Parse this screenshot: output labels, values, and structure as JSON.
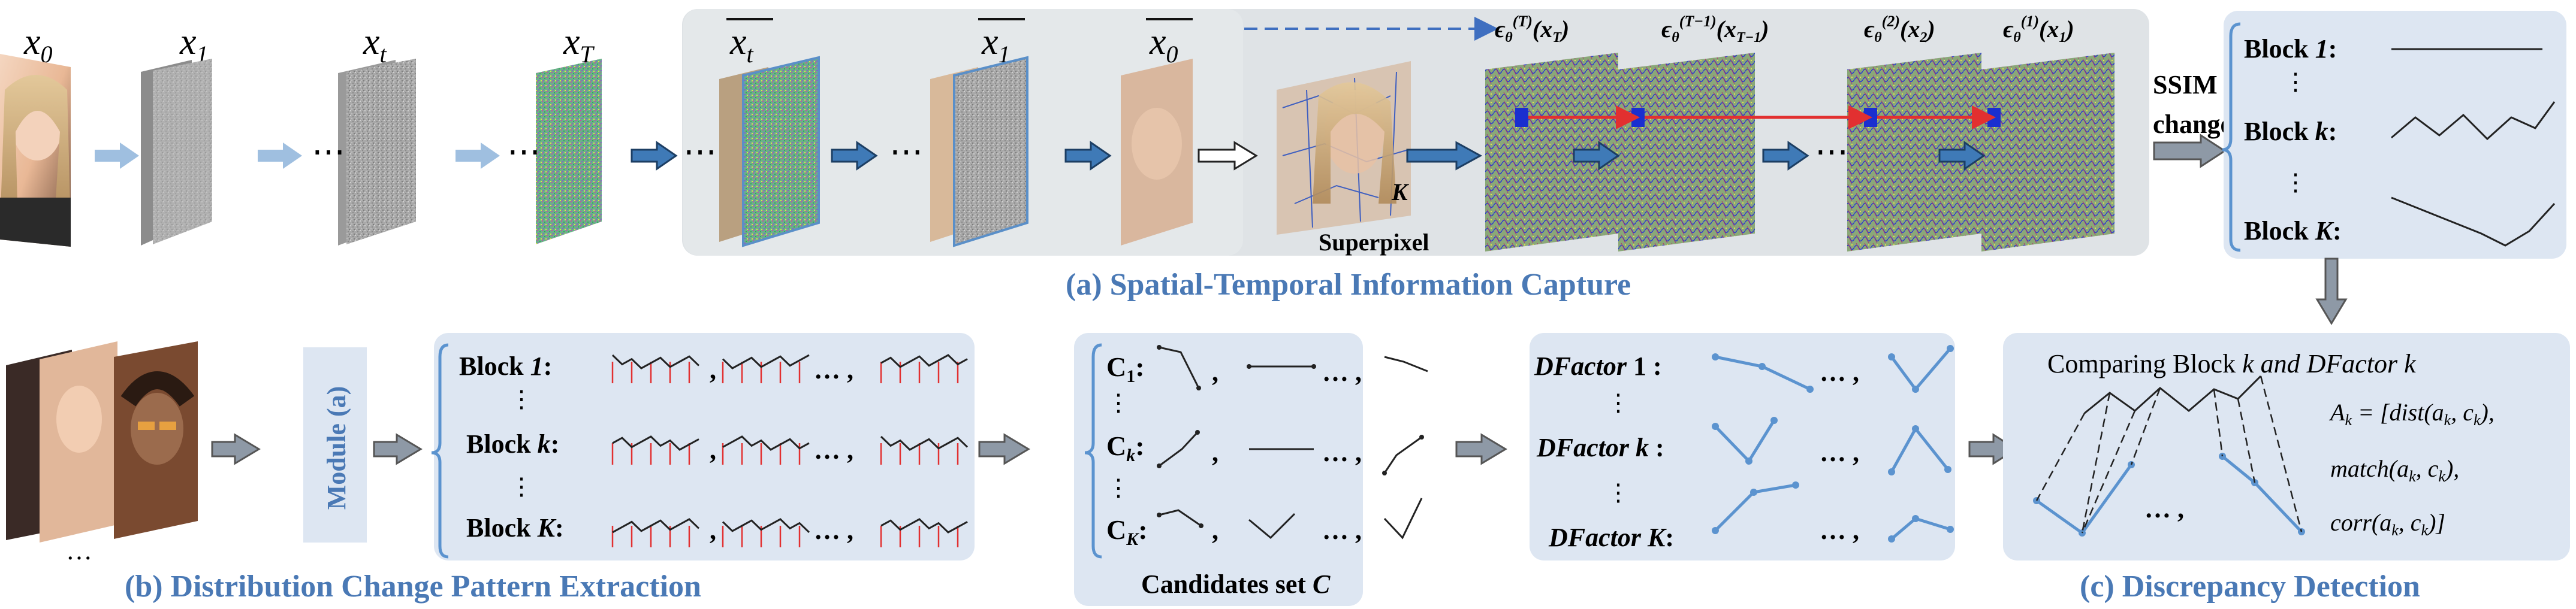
{
  "top": {
    "x_labels": {
      "x0": "x",
      "x0_sub": "0",
      "x1": "x",
      "x1_sub": "1",
      "xt": "x",
      "xt_sub": "t",
      "xT": "x",
      "xT_sub": "T"
    },
    "xbar_labels": {
      "t": "x",
      "t_sub": "t",
      "one": "x",
      "one_sub": "1",
      "zero": "x",
      "zero_sub": "0"
    },
    "ellipsis": "⋯",
    "superpixel_k": "K",
    "superpixel_label": "Superpixel",
    "eps": [
      {
        "base": "ϵ",
        "sub": "θ",
        "sup": "(T)",
        "arg": "(x",
        "arg_sub": "T",
        "close": ")"
      },
      {
        "base": "ϵ",
        "sub": "θ",
        "sup": "(T−1)",
        "arg": "(x",
        "arg_sub": "T−1",
        "close": ")"
      },
      {
        "base": "ϵ",
        "sub": "θ",
        "sup": "(2)",
        "arg": "(x",
        "arg_sub": "2",
        "close": ")"
      },
      {
        "base": "ϵ",
        "sub": "θ",
        "sup": "(1)",
        "arg": "(x",
        "arg_sub": "1",
        "close": ")"
      }
    ],
    "ssim_line1": "SSIM",
    "ssim_line2": "change",
    "blocks": [
      {
        "label": "Block 1:",
        "prefix": "Block ",
        "var": "1",
        "suffix": ":"
      },
      {
        "label": "Block k:",
        "prefix": "Block ",
        "var": "k",
        "suffix": ":"
      },
      {
        "label": "Block K:",
        "prefix": "Block ",
        "var": "K",
        "suffix": ":"
      }
    ],
    "caption_a": "(a) Spatial-Temporal Information Capture"
  },
  "bottom": {
    "module_label": "Module (a)",
    "faces_ellipsis": "…",
    "blocks_b": [
      {
        "prefix": "Block ",
        "var": "1",
        "suffix": ":"
      },
      {
        "prefix": "Block ",
        "var": "k",
        "suffix": ":"
      },
      {
        "prefix": "Block ",
        "var": "K",
        "suffix": ":"
      }
    ],
    "caption_b": "(b) Distribution Change Pattern Extraction",
    "candidates": [
      {
        "base": "C",
        "sub": "1",
        "suffix": ":"
      },
      {
        "base": "C",
        "sub": "k",
        "suffix": ":"
      },
      {
        "base": "C",
        "sub": "K",
        "suffix": ":"
      }
    ],
    "candidates_caption_prefix": "Candidates set ",
    "candidates_caption_var": "C",
    "dfactors": [
      {
        "prefix": "DFactor ",
        "var": "1",
        "suffix": " :"
      },
      {
        "prefix": "DFactor ",
        "var": "k",
        "suffix": " :"
      },
      {
        "prefix": "DFactor ",
        "var": "K",
        "suffix": ":"
      }
    ],
    "sep_comma": ",",
    "sep_dots": "… ,",
    "compare_title_prefix": "Comparing Block ",
    "compare_title_k1": "k",
    "compare_title_mid": " and ",
    "compare_title_df": "DFactor k",
    "formula": {
      "line1": "A",
      "line1_sub": "k",
      "line1_rest": " = [dist(a",
      "line1_sub2": "k",
      "line1_mid": ", c",
      "line1_sub3": "k",
      "line1_end": "),",
      "line2": "match(a",
      "line2_sub": "k",
      "line2_mid": ", c",
      "line2_sub2": "k",
      "line2_end": "),",
      "line3": "corr(a",
      "line3_sub": "k",
      "line3_mid": ", c",
      "line3_sub2": "k",
      "line3_end": ")]"
    },
    "caption_c": "(c) Discrepancy Detection"
  },
  "colors": {
    "panel_bg": "#dde6f2",
    "panel_a_bg": "#dfe3e6",
    "caption_blue": "#4a79b5",
    "arrow_blue": "#3f7ab7",
    "arrow_light": "#9fbfe0",
    "arrow_gray": "#8e99a6",
    "line_blue": "#5b93cf",
    "red": "#e23030",
    "dark_blue": "#1a2fd0"
  }
}
